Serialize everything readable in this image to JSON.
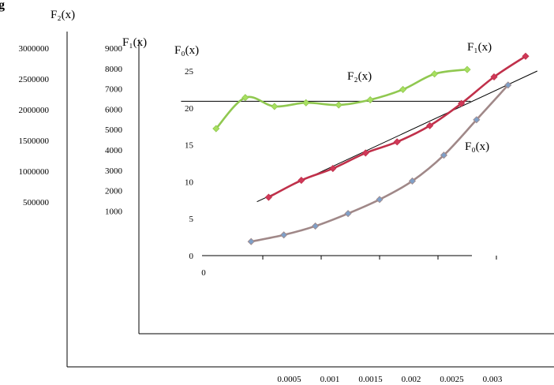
{
  "corner_glyph": "g",
  "chart_data": {
    "type": "line",
    "axes": {
      "f2": {
        "label": "F₂(x)",
        "ticks": [
          "3000000",
          "2500000",
          "2000000",
          "1500000",
          "1000000",
          "500000"
        ]
      },
      "f1": {
        "label": "F₁(x)",
        "ticks": [
          "9000",
          "8000",
          "7000",
          "6000",
          "5000",
          "4000",
          "3000",
          "2000",
          "1000"
        ]
      },
      "f0": {
        "label": "F₀(x)",
        "ticks": [
          "25",
          "20",
          "15",
          "10",
          "5",
          "0"
        ],
        "ylim": [
          0,
          25
        ]
      },
      "x": {
        "ticks": [
          "0",
          "0.0005",
          "0.001",
          "0.0015",
          "0.002",
          "0.0025",
          "0.003"
        ],
        "xlim": [
          0,
          0.003
        ]
      }
    },
    "series": [
      {
        "name": "F₂(x)",
        "color": "#90c850",
        "marker_fill": "#a8e060",
        "x": [
          0.0001,
          0.00035,
          0.0006,
          0.00087,
          0.00115,
          0.00142,
          0.0017,
          0.00197,
          0.00225
        ],
        "y": [
          17.2,
          21.4,
          20.2,
          20.7,
          20.4,
          21.1,
          22.5,
          24.6,
          25.2
        ]
      },
      {
        "name": "F₁(x)",
        "color": "#c0304a",
        "marker_fill": "#d03858",
        "x": [
          0.00055,
          0.00083,
          0.0011,
          0.00138,
          0.00165,
          0.00193,
          0.0022,
          0.00248,
          0.00275
        ],
        "y": [
          7.9,
          10.2,
          11.8,
          13.9,
          15.4,
          17.6,
          20.6,
          24.2,
          27.0
        ]
      },
      {
        "name": "F₀(x)",
        "color": "#a08888",
        "marker_fill": "#7fa0c8",
        "x": [
          0.0004,
          0.00068,
          0.00095,
          0.00123,
          0.0015,
          0.00178,
          0.00205,
          0.00233,
          0.0026
        ],
        "y": [
          1.9,
          2.8,
          4.0,
          5.7,
          7.6,
          10.1,
          13.6,
          18.4,
          23.1
        ]
      }
    ],
    "reference_lines": [
      {
        "kind": "horizontal",
        "x": [
          -0.0002,
          0.00228
        ],
        "y": [
          20.9,
          20.9
        ],
        "color": "#000000"
      },
      {
        "kind": "trend",
        "x": [
          0.00045,
          0.00285
        ],
        "y": [
          7.3,
          25.0
        ],
        "color": "#000000"
      }
    ],
    "curve_labels": [
      {
        "series": "F₂(x)",
        "text": "F₂(x)"
      },
      {
        "series": "F₁(x)",
        "text": "F₁(x)"
      },
      {
        "series": "F₀(x)",
        "text": "F₀(x)"
      }
    ]
  }
}
